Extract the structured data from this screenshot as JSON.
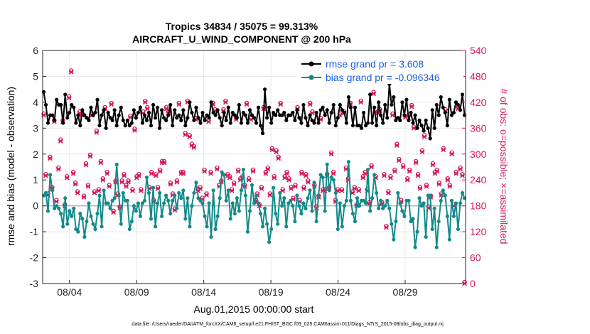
{
  "chart_data": {
    "type": "line",
    "title": "Tropics 34834 / 35075 = 99.313%",
    "subtitle": "AIRCRAFT_U_WIND_COMPONENT @ 200 hPa",
    "xlabel": "Aug.01,2015 00:00:00 start",
    "ylabel": "rmse and bias (model - observation)",
    "y2label": "# of obs: o=possible; ×=assimilated",
    "xlim": [
      1,
      32.5
    ],
    "ylim": [
      -3,
      6
    ],
    "y2lim": [
      0,
      540
    ],
    "x_ticks": [
      3,
      8,
      13,
      18,
      23,
      28
    ],
    "x_tick_labels": [
      "08/04",
      "08/09",
      "08/14",
      "08/19",
      "08/24",
      "08/29"
    ],
    "y_ticks": [
      "-3",
      "-2",
      "-1",
      "0",
      "1",
      "2",
      "3",
      "4",
      "5",
      "6"
    ],
    "y2_ticks": [
      "0",
      "60",
      "120",
      "180",
      "240",
      "300",
      "360",
      "420",
      "480",
      "540"
    ],
    "grid": true,
    "legend_position": "top-right",
    "series": [
      {
        "name": "rmse grand pr = 3.608",
        "color": "#000000",
        "axis": "left",
        "values": [
          4.4,
          3.9,
          3.2,
          3.5,
          3.5,
          3.3,
          4.1,
          3.9,
          3.9,
          3.2,
          4.3,
          3.4,
          3.6,
          3.9,
          3.8,
          3.2,
          3.5,
          3.1,
          3.7,
          3.5,
          3.4,
          3.3,
          3.8,
          3.5,
          3.6,
          4.1,
          3.1,
          3.5,
          3.7,
          3.0,
          3.6,
          3.4,
          3.3,
          3.7,
          3.1,
          3.5,
          3.8,
          3.3,
          3.1,
          3.3,
          3.1,
          3.2,
          3.7,
          3.4,
          3.6,
          3.8,
          3.2,
          3.5,
          3.3,
          3.6,
          3.1,
          3.9,
          3.4,
          3.8,
          3.0,
          3.7,
          3.4,
          3.3,
          3.5,
          3.9,
          3.1,
          3.7,
          3.4,
          3.5,
          3.3,
          3.7,
          3.1,
          3.4,
          4.0,
          3.6,
          3.3,
          3.8,
          3.4,
          3.2,
          3.6,
          3.3,
          3.5,
          3.4,
          4.0,
          3.6,
          3.5,
          3.7,
          3.4,
          3.1,
          3.6,
          3.3,
          3.8,
          3.2,
          3.6,
          3.5,
          3.4,
          3.9,
          3.2,
          3.6,
          3.5,
          3.2,
          3.7,
          3.5,
          3.4,
          3.2,
          3.8,
          3.1,
          2.8,
          4.5,
          3.4,
          3.8,
          3.2,
          3.6,
          3.5,
          3.7,
          3.5,
          3.5,
          3.6,
          3.3,
          3.5,
          3.5,
          3.6,
          3.3,
          3.7,
          3.4,
          3.2,
          3.9,
          3.4,
          3.1,
          3.5,
          3.3,
          3.2,
          3.6,
          3.2,
          3.7,
          3.8,
          3.5,
          3.7,
          3.2,
          3.6,
          3.9,
          3.1,
          3.4,
          3.9,
          3.7,
          3.6,
          3.2,
          4.2,
          3.8,
          3.1,
          3.8,
          3.1,
          3.1,
          3.0,
          3.6,
          3.1,
          3.2,
          4.3,
          3.2,
          3.8,
          3.1,
          4.0,
          3.5,
          3.2,
          3.9,
          3.4,
          4.7,
          3.9,
          4.2,
          3.3,
          3.4,
          3.3,
          4.0,
          3.5,
          4.1,
          3.3,
          3.6,
          3.2,
          3.5,
          3.0,
          3.3,
          3.1,
          2.9,
          3.3,
          3.0,
          2.6,
          3.7,
          3.0,
          3.9,
          3.5,
          4.2,
          3.8,
          3.6,
          3.1,
          4.1,
          3.5,
          3.6,
          4.0,
          3.9,
          3.7,
          4.3,
          3.5
        ]
      },
      {
        "name": "bias grand pr = -0.096346",
        "color": "#138a8a",
        "axis": "left",
        "values": [
          0.4,
          0.5,
          -0.2,
          1.2,
          0.6,
          -0.1,
          0.0,
          -0.1,
          -0.3,
          -0.8,
          0.3,
          -0.7,
          -0.2,
          -0.4,
          -0.1,
          -0.9,
          -1.0,
          -0.3,
          -0.5,
          -1.2,
          -0.6,
          0.1,
          -0.4,
          -0.7,
          -0.9,
          -0.3,
          0.4,
          -0.8,
          0.6,
          0.1,
          0.1,
          -0.1,
          0.2,
          0.3,
          1.6,
          0.4,
          -0.7,
          0.5,
          0.2,
          0.2,
          -0.9,
          -0.6,
          0.0,
          -0.2,
          0.1,
          -0.4,
          0.1,
          0.2,
          1.1,
          0.5,
          -0.5,
          0.7,
          -0.8,
          0.1,
          0.5,
          -0.4,
          0.1,
          0.4,
          0.2,
          -0.3,
          0.2,
          0.4,
          -0.1,
          0.5,
          0.3,
          0.6,
          -0.5,
          0.3,
          -0.8,
          0.0,
          0.5,
          0.9,
          0.3,
          0.2,
          0.1,
          -0.4,
          -0.8,
          0.1,
          -1.2,
          0.6,
          -0.9,
          -0.4,
          0.3,
          1.3,
          1.2,
          0.2,
          0.6,
          -0.5,
          0.1,
          -0.3,
          0.3,
          -0.2,
          0.6,
          1.4,
          0.4,
          -1.0,
          -0.2,
          0.8,
          0.1,
          0.4,
          0.1,
          -0.3,
          -0.8,
          -0.1,
          -0.7,
          -1.4,
          -0.9,
          0.7,
          -0.3,
          -0.7,
          0.5,
          0.0,
          0.3,
          -0.8,
          0.1,
          0.2,
          0.0,
          -0.6,
          0.4,
          0.0,
          -0.3,
          0.1,
          -0.1,
          0.3,
          0.6,
          -0.2,
          0.9,
          -0.6,
          0.4,
          1.2,
          1.1,
          -0.2,
          1.6,
          0.6,
          1.1,
          1.0,
          0.5,
          -0.9,
          0.1,
          -0.8,
          0.0,
          0.2,
          1.7,
          0.2,
          -0.3,
          -0.6,
          0.3,
          0.0,
          0.2,
          0.2,
          0.1,
          1.4,
          -0.2,
          0.3,
          1.2,
          0.5,
          -0.1,
          0.2,
          -0.1,
          0.0,
          0.2,
          -0.1,
          -0.7,
          -1.3,
          -0.6,
          0.5,
          0.1,
          -0.2,
          -0.4,
          0.2,
          0.2,
          -0.6,
          -0.5,
          -1.6,
          -1.0,
          0.3,
          0.0,
          0.1,
          -1.2,
          0.4,
          0.4,
          -0.9,
          -0.1,
          -1.6,
          -0.6,
          0.2,
          0.6,
          0.4,
          -0.4,
          -1.3,
          0.2,
          -0.4,
          0.1,
          -0.9,
          0.1,
          0.5,
          0.3
        ]
      },
      {
        "name": "# of obs possible",
        "color": "#d6175a",
        "axis": "right",
        "marker": "o",
        "values": [
          390,
          250,
          205,
          290,
          220,
          375,
          190,
          265,
          330,
          375,
          180,
          245,
          430,
          490,
          255,
          230,
          210,
          395,
          390,
          200,
          275,
          225,
          295,
          390,
          210,
          350,
          215,
          280,
          240,
          405,
          255,
          225,
          415,
          165,
          235,
          205,
          175,
          235,
          250,
          225,
          235,
          385,
          215,
          355,
          245,
          250,
          215,
          395,
          420,
          405,
          220,
          255,
          190,
          250,
          220,
          260,
          280,
          280,
          405,
          395,
          230,
          205,
          170,
          235,
          415,
          255,
          255,
          345,
          420,
          340,
          320,
          315,
          380,
          215,
          220,
          195,
          260,
          205,
          375,
          255,
          415,
          400,
          265,
          225,
          235,
          400,
          420,
          250,
          245,
          215,
          230,
          380,
          260,
          240,
          245,
          225,
          415,
          240,
          380,
          260,
          190,
          205,
          180,
          220,
          405,
          255,
          265,
          205,
          310,
          245,
          305,
          290,
          415,
          215,
          245,
          255,
          240,
          220,
          195,
          225,
          405,
          190,
          255,
          220,
          250,
          235,
          415,
          395,
          225,
          175,
          200,
          380,
          215,
          215,
          250,
          220,
          300,
          255,
          190,
          215,
          390,
          215,
          395,
          265,
          240,
          415,
          210,
          220,
          180,
          215,
          420,
          245,
          255,
          215,
          185,
          270,
          440,
          245,
          395,
          400,
          185,
          250,
          130,
          210,
          245,
          390,
          260,
          320,
          285,
          190,
          270,
          385,
          240,
          260,
          410,
          360,
          280,
          250,
          220,
          305,
          340,
          225,
          175,
          200,
          275,
          255,
          260,
          230,
          205,
          310,
          400,
          240,
          225,
          300,
          180,
          255,
          405,
          265,
          250,
          0
        ]
      },
      {
        "name": "# of obs assimilated",
        "color": "#d6175a",
        "axis": "right",
        "marker": "x",
        "values": [
          390,
          250,
          205,
          290,
          220,
          375,
          190,
          265,
          330,
          375,
          180,
          245,
          430,
          490,
          255,
          230,
          210,
          395,
          390,
          200,
          275,
          225,
          295,
          390,
          210,
          350,
          215,
          280,
          240,
          405,
          255,
          225,
          415,
          165,
          235,
          205,
          175,
          235,
          250,
          225,
          235,
          385,
          215,
          355,
          245,
          250,
          215,
          395,
          420,
          405,
          220,
          255,
          190,
          250,
          220,
          260,
          280,
          280,
          405,
          395,
          230,
          205,
          170,
          235,
          415,
          255,
          255,
          345,
          420,
          340,
          320,
          315,
          380,
          215,
          220,
          195,
          260,
          205,
          375,
          255,
          415,
          400,
          265,
          225,
          235,
          400,
          420,
          250,
          245,
          215,
          230,
          380,
          260,
          240,
          245,
          225,
          415,
          240,
          380,
          260,
          190,
          205,
          180,
          220,
          405,
          255,
          265,
          205,
          310,
          245,
          305,
          290,
          415,
          215,
          245,
          255,
          240,
          220,
          195,
          225,
          405,
          190,
          255,
          220,
          250,
          235,
          415,
          395,
          225,
          175,
          200,
          380,
          215,
          215,
          250,
          220,
          300,
          255,
          190,
          215,
          390,
          215,
          395,
          265,
          240,
          415,
          210,
          220,
          180,
          215,
          420,
          245,
          255,
          215,
          185,
          270,
          440,
          245,
          395,
          400,
          185,
          250,
          130,
          210,
          245,
          390,
          260,
          320,
          285,
          190,
          270,
          385,
          240,
          260,
          410,
          360,
          280,
          250,
          220,
          305,
          340,
          225,
          175,
          200,
          275,
          255,
          260,
          230,
          205,
          310,
          400,
          240,
          225,
          300,
          180,
          255,
          405,
          265,
          250,
          0
        ]
      }
    ],
    "footnote": "data file: /Users/raeder/DAI/ATM_forcXX/CAM6_setup/f.e21.FHIST_BGC.f09_025.CAM6assim.011/Diags_NTrS_2015-08/obs_diag_output.nc"
  }
}
